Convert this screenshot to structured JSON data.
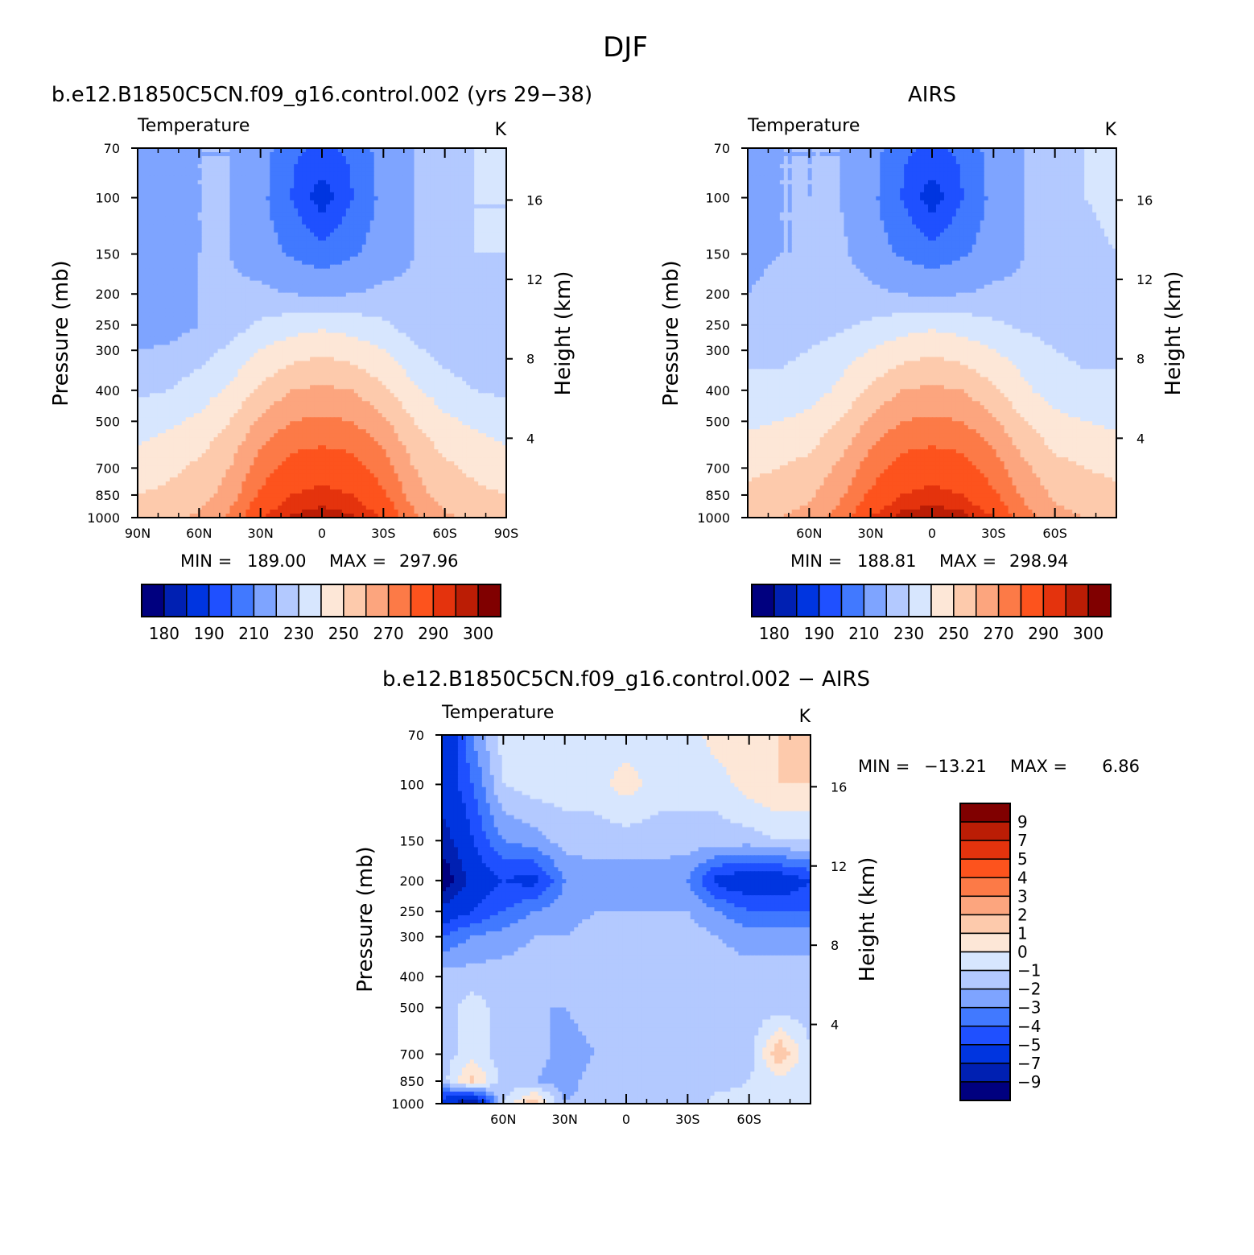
{
  "figure": {
    "title": "DJF"
  },
  "colors": {
    "abs_levels": [
      "#00007f",
      "#0020b2",
      "#0035e0",
      "#1f50ff",
      "#4179ff",
      "#7ea4ff",
      "#b3c9ff",
      "#d7e6fe",
      "#fde7d7",
      "#fdcaac",
      "#fca57e",
      "#fc7a47",
      "#fd531d",
      "#e4330d",
      "#bb1d05",
      "#800000"
    ],
    "diff_levels": [
      "#00007f",
      "#0020b2",
      "#0035e0",
      "#1f50ff",
      "#4179ff",
      "#7ea4ff",
      "#b3c9ff",
      "#d7e6fe",
      "#fde7d7",
      "#fdcaac",
      "#fca57e",
      "#fc7a47",
      "#fd531d",
      "#e4330d",
      "#bb1d05",
      "#800000"
    ]
  },
  "chart_data": [
    {
      "type": "heatmap",
      "id": "model",
      "title": "b.e12.B1850C5CN.f09_g16.control.002 (yrs 29−38)",
      "variable": "Temperature",
      "units": "K",
      "ylabel": "Pressure (mb)",
      "ylabel_right": "Height (km)",
      "x_ticks": [
        "90N",
        "60N",
        "30N",
        "0",
        "30S",
        "60S",
        "90S"
      ],
      "x_tick_values": [
        90,
        60,
        30,
        0,
        -30,
        -60,
        -90
      ],
      "y_ticks": [
        "70",
        "100",
        "150",
        "200",
        "250",
        "300",
        "400",
        "500",
        "700",
        "850",
        "1000"
      ],
      "y_tick_values": [
        70,
        100,
        150,
        200,
        250,
        300,
        400,
        500,
        700,
        850,
        1000
      ],
      "height_ticks": [
        "16",
        "12",
        "8",
        "4"
      ],
      "height_tick_values": [
        16,
        12,
        8,
        4
      ],
      "xlim": [
        90,
        -90
      ],
      "ylim": [
        70,
        1000
      ],
      "min_label": "MIN =",
      "min_value": "189.00",
      "max_label": "MAX =",
      "max_value": "297.96",
      "levels": [
        180,
        185,
        190,
        200,
        210,
        220,
        230,
        240,
        250,
        260,
        270,
        280,
        290,
        295,
        300
      ],
      "colorbar_labels": [
        "180",
        "190",
        "210",
        "230",
        "250",
        "270",
        "290",
        "300"
      ],
      "field": {
        "lat": [
          90,
          75,
          60,
          45,
          30,
          15,
          0,
          -15,
          -30,
          -45,
          -60,
          -75,
          -90
        ],
        "pressure": [
          70,
          100,
          150,
          200,
          250,
          300,
          400,
          500,
          700,
          850,
          1000
        ],
        "values": [
          [
            210,
            220,
            220,
            220,
            215,
            202,
            198,
            202,
            215,
            220,
            225,
            230,
            232
          ],
          [
            210,
            218,
            220,
            220,
            213,
            200,
            184,
            200,
            213,
            220,
            225,
            230,
            230
          ],
          [
            210,
            212,
            220,
            220,
            215,
            209,
            205,
            209,
            215,
            220,
            225,
            230,
            230
          ],
          [
            210,
            212,
            220,
            222,
            222,
            220,
            218,
            220,
            222,
            222,
            225,
            228,
            230
          ],
          [
            212,
            215,
            220,
            225,
            232,
            236,
            238,
            236,
            232,
            225,
            222,
            222,
            222
          ],
          [
            220,
            222,
            226,
            232,
            240,
            245,
            248,
            245,
            240,
            232,
            226,
            222,
            222
          ],
          [
            228,
            230,
            235,
            242,
            252,
            260,
            262,
            260,
            252,
            242,
            235,
            230,
            228
          ],
          [
            235,
            238,
            242,
            250,
            262,
            270,
            272,
            270,
            262,
            250,
            242,
            238,
            235
          ],
          [
            245,
            248,
            252,
            260,
            275,
            285,
            287,
            285,
            275,
            260,
            252,
            248,
            245
          ],
          [
            250,
            252,
            255,
            265,
            282,
            290,
            292,
            290,
            282,
            265,
            255,
            252,
            250
          ],
          [
            255,
            258,
            262,
            272,
            290,
            296,
            298,
            296,
            290,
            272,
            262,
            258,
            255
          ]
        ]
      }
    },
    {
      "type": "heatmap",
      "id": "obs",
      "title": "AIRS",
      "variable": "Temperature",
      "units": "K",
      "ylabel": "Pressure (mb)",
      "ylabel_right": "Height (km)",
      "x_ticks": [
        "60N",
        "30N",
        "0",
        "30S",
        "60S"
      ],
      "x_tick_values": [
        60,
        30,
        0,
        -30,
        -60
      ],
      "y_ticks": [
        "70",
        "100",
        "150",
        "200",
        "250",
        "300",
        "400",
        "500",
        "700",
        "850",
        "1000"
      ],
      "y_tick_values": [
        70,
        100,
        150,
        200,
        250,
        300,
        400,
        500,
        700,
        850,
        1000
      ],
      "height_ticks": [
        "16",
        "12",
        "8",
        "4"
      ],
      "height_tick_values": [
        16,
        12,
        8,
        4
      ],
      "xlim": [
        90,
        -90
      ],
      "ylim": [
        70,
        1000
      ],
      "min_label": "MIN =",
      "min_value": "188.81",
      "max_label": "MAX =",
      "max_value": "298.94",
      "levels": [
        180,
        185,
        190,
        200,
        210,
        220,
        230,
        240,
        250,
        260,
        270,
        280,
        290,
        295,
        300
      ],
      "colorbar_labels": [
        "180",
        "190",
        "210",
        "230",
        "250",
        "270",
        "290",
        "300"
      ],
      "field": {
        "lat": [
          90,
          75,
          60,
          45,
          30,
          15,
          0,
          -15,
          -30,
          -45,
          -60,
          -75,
          -90
        ],
        "pressure": [
          70,
          100,
          150,
          200,
          250,
          300,
          400,
          500,
          700,
          850,
          1000
        ],
        "values": [
          [
            212,
            220,
            220,
            220,
            215,
            202,
            198,
            202,
            215,
            220,
            225,
            230,
            232
          ],
          [
            215,
            220,
            220,
            220,
            213,
            200,
            184,
            200,
            213,
            220,
            225,
            230,
            232
          ],
          [
            218,
            220,
            220,
            222,
            215,
            209,
            205,
            209,
            215,
            220,
            225,
            228,
            230
          ],
          [
            220,
            222,
            222,
            225,
            222,
            220,
            218,
            220,
            222,
            222,
            225,
            228,
            230
          ],
          [
            225,
            225,
            225,
            228,
            232,
            236,
            238,
            236,
            232,
            228,
            226,
            225,
            225
          ],
          [
            228,
            228,
            230,
            235,
            240,
            245,
            248,
            245,
            240,
            235,
            230,
            228,
            228
          ],
          [
            232,
            232,
            235,
            242,
            252,
            260,
            262,
            260,
            252,
            242,
            235,
            232,
            232
          ],
          [
            238,
            240,
            243,
            250,
            262,
            270,
            272,
            270,
            262,
            250,
            243,
            240,
            238
          ],
          [
            248,
            250,
            253,
            262,
            275,
            285,
            287,
            285,
            275,
            262,
            253,
            250,
            248
          ],
          [
            252,
            254,
            258,
            268,
            282,
            290,
            292,
            290,
            282,
            268,
            258,
            254,
            252
          ],
          [
            257,
            260,
            264,
            274,
            290,
            297,
            299,
            297,
            290,
            274,
            264,
            260,
            257
          ]
        ]
      }
    },
    {
      "type": "heatmap",
      "id": "diff",
      "title": "b.e12.B1850C5CN.f09_g16.control.002 − AIRS",
      "variable": "Temperature",
      "units": "K",
      "ylabel": "Pressure (mb)",
      "ylabel_right": "Height (km)",
      "x_ticks": [
        "60N",
        "30N",
        "0",
        "30S",
        "60S"
      ],
      "x_tick_values": [
        60,
        30,
        0,
        -30,
        -60
      ],
      "y_ticks": [
        "70",
        "100",
        "150",
        "200",
        "250",
        "300",
        "400",
        "500",
        "700",
        "850",
        "1000"
      ],
      "y_tick_values": [
        70,
        100,
        150,
        200,
        250,
        300,
        400,
        500,
        700,
        850,
        1000
      ],
      "height_ticks": [
        "16",
        "12",
        "8",
        "4"
      ],
      "height_tick_values": [
        16,
        12,
        8,
        4
      ],
      "xlim": [
        90,
        -90
      ],
      "ylim": [
        70,
        1000
      ],
      "min_label": "MIN =",
      "min_value": "−13.21",
      "max_label": "MAX =",
      "max_value": "6.86",
      "levels": [
        -9,
        -7,
        -5,
        -4,
        -3,
        -2,
        -1,
        0,
        1,
        2,
        3,
        4,
        5,
        7,
        9
      ],
      "colorbar_labels": [
        "9",
        "7",
        "5",
        "4",
        "3",
        "2",
        "1",
        "0",
        "−1",
        "−2",
        "−3",
        "−4",
        "−5",
        "−7",
        "−9"
      ],
      "field": {
        "lat": [
          90,
          75,
          60,
          45,
          30,
          15,
          0,
          -15,
          -30,
          -45,
          -60,
          -75,
          -90
        ],
        "pressure": [
          70,
          100,
          150,
          200,
          250,
          300,
          400,
          500,
          700,
          850,
          1000
        ],
        "values": [
          [
            -7,
            -3,
            -0.5,
            -0.5,
            -0.5,
            -0.5,
            -0.5,
            -0.5,
            -0.5,
            0.5,
            1,
            1,
            1.5
          ],
          [
            -6,
            -4,
            -1,
            -0.5,
            -0.5,
            -0.5,
            0.5,
            -0.5,
            -0.5,
            -0.5,
            0.5,
            1,
            1
          ],
          [
            -8,
            -5,
            -3,
            -2.5,
            -1.5,
            -1.5,
            -1.5,
            -1.5,
            -1.5,
            -1.5,
            -1.5,
            -1,
            -1
          ],
          [
            -11,
            -6,
            -5,
            -5.5,
            -3,
            -2.5,
            -2.5,
            -2.5,
            -3,
            -5.5,
            -6,
            -6,
            -5
          ],
          [
            -6,
            -5,
            -4,
            -3,
            -2.5,
            -2,
            -2,
            -2,
            -2,
            -3,
            -4,
            -4,
            -4
          ],
          [
            -4,
            -3,
            -2.5,
            -2,
            -2,
            -1.5,
            -1.5,
            -1.5,
            -1.5,
            -2,
            -2.5,
            -2.5,
            -2.5
          ],
          [
            -1.5,
            -1.5,
            -1.5,
            -1.5,
            -2,
            -1.5,
            -2,
            -2,
            -2,
            -1.5,
            -1.5,
            -1.5,
            -1.5
          ],
          [
            -1.5,
            -0.5,
            -1.5,
            -2,
            -2,
            -1.5,
            -1.5,
            -2,
            -2,
            -1.5,
            -1.5,
            -1.5,
            -1.5
          ],
          [
            -1.5,
            -0.5,
            -1.5,
            -1.5,
            -2.5,
            -2,
            -2,
            -1.5,
            -2,
            -2,
            -1.5,
            2,
            -1
          ],
          [
            -1.5,
            1.5,
            -1.5,
            -2,
            -2.5,
            -1.5,
            -1.5,
            -2,
            -2,
            -1.5,
            -1,
            -0.5,
            -1
          ],
          [
            -6,
            -9,
            -1,
            2,
            -2,
            -1.5,
            -1.5,
            -1.5,
            -1.5,
            -0.5,
            -0.5,
            -0.5,
            -0.5
          ]
        ]
      }
    }
  ]
}
